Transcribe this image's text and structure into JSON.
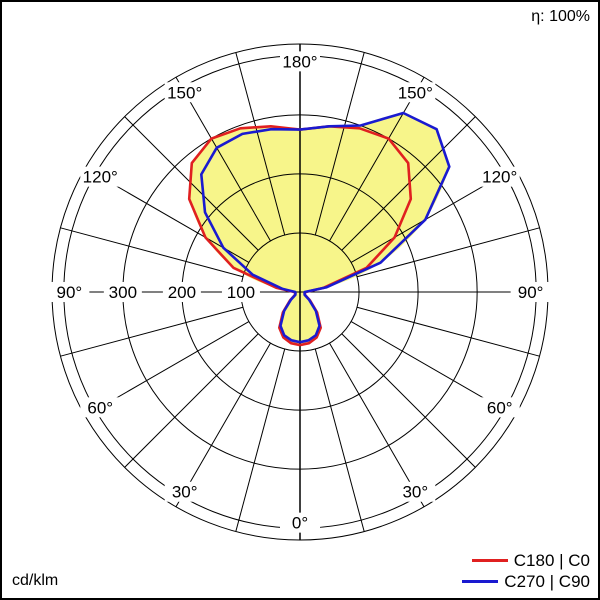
{
  "efficiency_label": "η: 100%",
  "unit_label": "cd/klm",
  "colors": {
    "c0": "#e02020",
    "c90": "#1a1ad0",
    "fill": "#f7f58a",
    "grid": "#000000"
  },
  "chart_data": {
    "type": "polar",
    "angle_labels": {
      "top": "180°",
      "upper_left": "150°",
      "upper_right": "150°",
      "mid_upper_left": "120°",
      "mid_upper_right": "120°",
      "left": "90°",
      "right": "90°",
      "mid_lower_left": "60°",
      "mid_lower_right": "60°",
      "lower_left": "30°",
      "lower_right": "30°",
      "bottom": "0°"
    },
    "radial_ticks": [
      {
        "value": 100,
        "label": "100"
      },
      {
        "value": 200,
        "label": "200"
      },
      {
        "value": 300,
        "label": "300"
      }
    ],
    "radial_max": 420,
    "grid_angle_step": 15,
    "legend": [
      "C180 | C0",
      "C270 | C90"
    ],
    "series": [
      {
        "name": "C180 | C0",
        "color": "#e02020",
        "side": "left",
        "points": [
          [
            0,
            90
          ],
          [
            10,
            88
          ],
          [
            20,
            82
          ],
          [
            30,
            70
          ],
          [
            40,
            45
          ],
          [
            50,
            22
          ],
          [
            60,
            10
          ],
          [
            75,
            8
          ],
          [
            90,
            10
          ],
          [
            100,
            40
          ],
          [
            110,
            120
          ],
          [
            120,
            185
          ],
          [
            130,
            245
          ],
          [
            140,
            285
          ],
          [
            150,
            300
          ],
          [
            160,
            295
          ],
          [
            170,
            285
          ],
          [
            180,
            275
          ]
        ]
      },
      {
        "name": "C180 | C0",
        "color": "#e02020",
        "side": "right",
        "points": [
          [
            0,
            90
          ],
          [
            10,
            88
          ],
          [
            20,
            82
          ],
          [
            30,
            70
          ],
          [
            40,
            45
          ],
          [
            50,
            22
          ],
          [
            60,
            10
          ],
          [
            75,
            8
          ],
          [
            90,
            10
          ],
          [
            100,
            40
          ],
          [
            110,
            120
          ],
          [
            120,
            185
          ],
          [
            130,
            245
          ],
          [
            140,
            285
          ],
          [
            150,
            300
          ],
          [
            160,
            295
          ],
          [
            170,
            285
          ],
          [
            180,
            275
          ]
        ]
      },
      {
        "name": "C270 | C90",
        "color": "#1a1ad0",
        "side": "left",
        "points": [
          [
            0,
            85
          ],
          [
            10,
            83
          ],
          [
            20,
            78
          ],
          [
            30,
            66
          ],
          [
            40,
            42
          ],
          [
            50,
            20
          ],
          [
            60,
            9
          ],
          [
            75,
            8
          ],
          [
            90,
            8
          ],
          [
            100,
            30
          ],
          [
            110,
            85
          ],
          [
            120,
            150
          ],
          [
            130,
            210
          ],
          [
            140,
            260
          ],
          [
            150,
            282
          ],
          [
            160,
            285
          ],
          [
            170,
            280
          ],
          [
            180,
            275
          ]
        ]
      },
      {
        "name": "C270 | C90",
        "color": "#1a1ad0",
        "side": "right",
        "points": [
          [
            0,
            85
          ],
          [
            10,
            83
          ],
          [
            20,
            78
          ],
          [
            30,
            66
          ],
          [
            40,
            42
          ],
          [
            50,
            20
          ],
          [
            60,
            9
          ],
          [
            90,
            8
          ],
          [
            100,
            45
          ],
          [
            110,
            145
          ],
          [
            120,
            245
          ],
          [
            130,
            330
          ],
          [
            140,
            360
          ],
          [
            150,
            350
          ],
          [
            160,
            300
          ],
          [
            170,
            285
          ],
          [
            180,
            275
          ]
        ]
      }
    ],
    "grid": true,
    "legend_position": "bottom-right"
  }
}
